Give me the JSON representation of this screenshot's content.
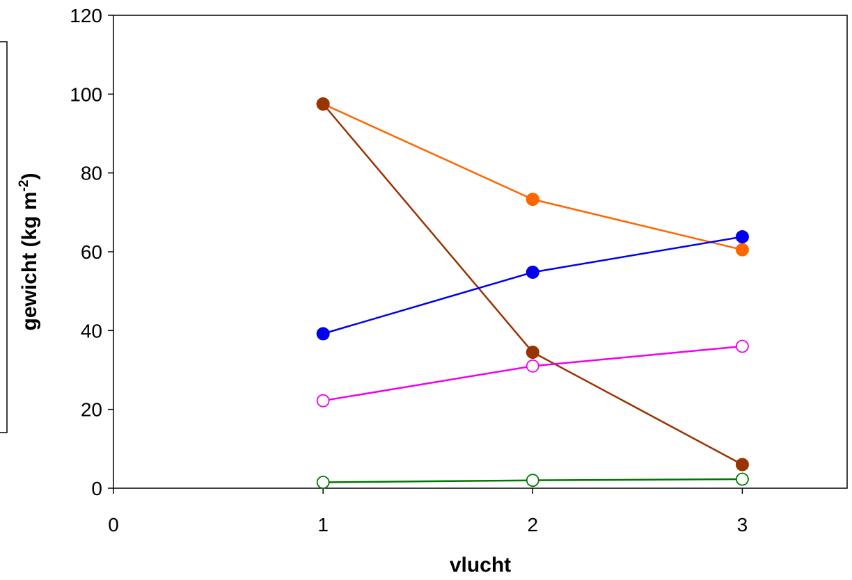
{
  "chart_data": {
    "type": "line",
    "title": "",
    "xlabel": "vlucht",
    "ylabel": {
      "main": "gewicht (kg m",
      "superscript": "-2",
      "close": ")"
    },
    "xlim": [
      0,
      3.5
    ],
    "ylim": [
      0,
      120
    ],
    "x_ticks": [
      0,
      1,
      2,
      3
    ],
    "x_tick_labels": [
      "0",
      "1",
      "2",
      "3"
    ],
    "y_ticks": [
      0,
      20,
      40,
      60,
      80,
      100,
      120
    ],
    "y_tick_labels": [
      "0",
      "20",
      "40",
      "60",
      "80",
      "100",
      "120"
    ],
    "grid": false,
    "legend": "none",
    "x": [
      1,
      2,
      3
    ],
    "series": [
      {
        "color": "#FF6600",
        "marker": "filled-circle",
        "values": [
          97.5,
          73.3,
          60.5
        ]
      },
      {
        "color": "#993300",
        "marker": "filled-circle",
        "values": [
          97.5,
          34.5,
          6.0
        ]
      },
      {
        "color": "#0000EE",
        "marker": "filled-circle",
        "values": [
          39.2,
          54.8,
          63.8
        ]
      },
      {
        "color": "#EE00EE",
        "marker": "open-circle",
        "values": [
          22.2,
          31.0,
          36.0
        ]
      },
      {
        "color": "#007700",
        "marker": "open-circle",
        "values": [
          1.5,
          2.0,
          2.3
        ]
      }
    ]
  }
}
